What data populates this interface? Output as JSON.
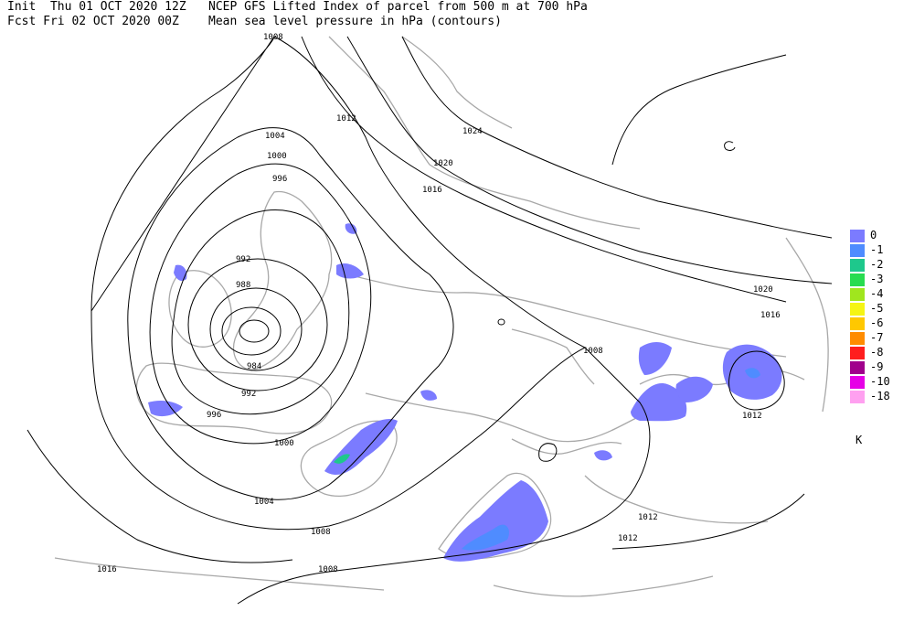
{
  "header": {
    "init_line": "Init  Thu 01 OCT 2020 12Z",
    "fcst_line": "Fcst Fri 02 OCT 2020 00Z",
    "title_line1": "NCEP GFS Lifted Index of parcel from 500 m at 700 hPa",
    "title_line2": "Mean sea level pressure in hPa (contours)"
  },
  "legend": {
    "unit": "K",
    "entries": [
      {
        "label": "0",
        "color": "#7b7bff"
      },
      {
        "label": "-1",
        "color": "#4f8cff"
      },
      {
        "label": "-2",
        "color": "#1ec88c"
      },
      {
        "label": "-3",
        "color": "#28dc50"
      },
      {
        "label": "-4",
        "color": "#a0e61e"
      },
      {
        "label": "-5",
        "color": "#f5f514"
      },
      {
        "label": "-6",
        "color": "#ffc800"
      },
      {
        "label": "-7",
        "color": "#ff8c00"
      },
      {
        "label": "-8",
        "color": "#ff1e1e"
      },
      {
        "label": "-9",
        "color": "#a0008c"
      },
      {
        "label": "-10",
        "color": "#e600e6"
      },
      {
        "label": "-18",
        "color": "#ffa0f0"
      }
    ]
  },
  "contour_labels": [
    "1008",
    "1012",
    "1004",
    "1000",
    "996",
    "992",
    "988",
    "984",
    "992",
    "996",
    "1000",
    "1004",
    "1008",
    "1016",
    "1008",
    "1024",
    "1020",
    "1016",
    "1020",
    "1016",
    "1008",
    "1012",
    "1012",
    "1012"
  ]
}
